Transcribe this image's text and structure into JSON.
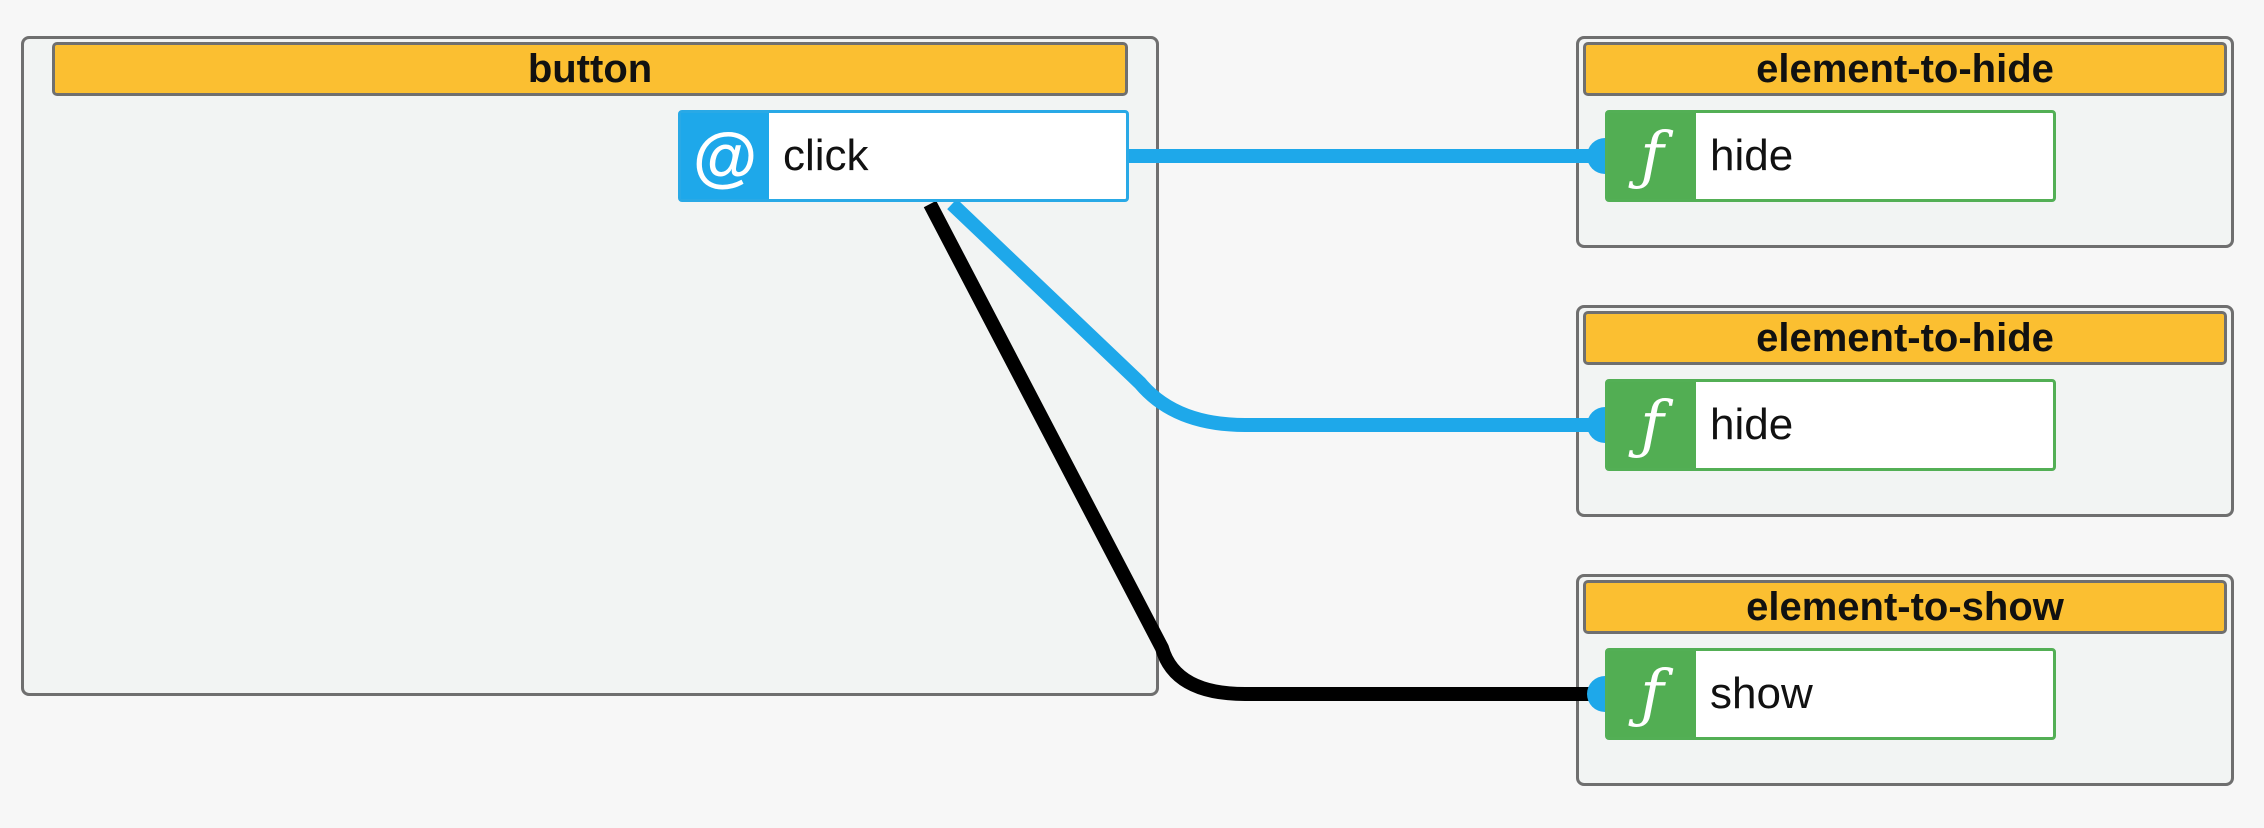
{
  "diagram": {
    "colors": {
      "node_header": "#fbbf31",
      "event_accent": "#1ea8ea",
      "function_accent": "#52ae53",
      "wire_blue": "#1ea8ea",
      "wire_black": "#000000"
    },
    "source_node": {
      "title": "button",
      "port": {
        "icon": "at-icon",
        "icon_glyph": "@",
        "label": "click"
      }
    },
    "target_nodes": [
      {
        "title": "element-to-hide",
        "port": {
          "icon": "function-icon",
          "icon_glyph": "ƒ",
          "label": "hide"
        }
      },
      {
        "title": "element-to-hide",
        "port": {
          "icon": "function-icon",
          "icon_glyph": "ƒ",
          "label": "hide"
        }
      },
      {
        "title": "element-to-show",
        "port": {
          "icon": "function-icon",
          "icon_glyph": "ƒ",
          "label": "show"
        }
      }
    ],
    "connections": [
      {
        "from": "click",
        "to_target": 0,
        "color": "#1ea8ea"
      },
      {
        "from": "click",
        "to_target": 1,
        "color": "#1ea8ea"
      },
      {
        "from": "click",
        "to_target": 2,
        "color": "#000000"
      }
    ]
  }
}
